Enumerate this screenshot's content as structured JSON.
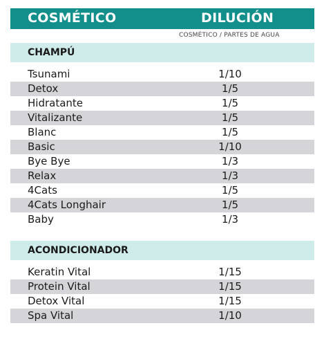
{
  "header": {
    "col1": "COSMÉTICO",
    "col2": "DILUCIÓN"
  },
  "subheader": "COSMÉTICO / PARTES DE AGUA",
  "sections": [
    {
      "title": "CHAMPÚ",
      "rows": [
        {
          "name": "Tsunami",
          "value": "1/10"
        },
        {
          "name": "Detox",
          "value": "1/5"
        },
        {
          "name": "Hidratante",
          "value": "1/5"
        },
        {
          "name": "Vitalizante",
          "value": "1/5"
        },
        {
          "name": "Blanc",
          "value": "1/5"
        },
        {
          "name": "Basic",
          "value": "1/10"
        },
        {
          "name": "Bye Bye",
          "value": "1/3"
        },
        {
          "name": "Relax",
          "value": "1/3"
        },
        {
          "name": "4Cats",
          "value": "1/5"
        },
        {
          "name": "4Cats Longhair",
          "value": "1/5"
        },
        {
          "name": "Baby",
          "value": "1/3"
        }
      ]
    },
    {
      "title": "ACONDICIONADOR",
      "rows": [
        {
          "name": "Keratin Vital",
          "value": "1/15"
        },
        {
          "name": "Protein Vital",
          "value": "1/15"
        },
        {
          "name": "Detox Vital",
          "value": "1/15"
        },
        {
          "name": "Spa Vital",
          "value": "1/10"
        }
      ]
    }
  ],
  "colors": {
    "header_bg": "#128f8b",
    "section_bg": "#cfecea",
    "row_alt_bg": "#d4d4d9"
  }
}
